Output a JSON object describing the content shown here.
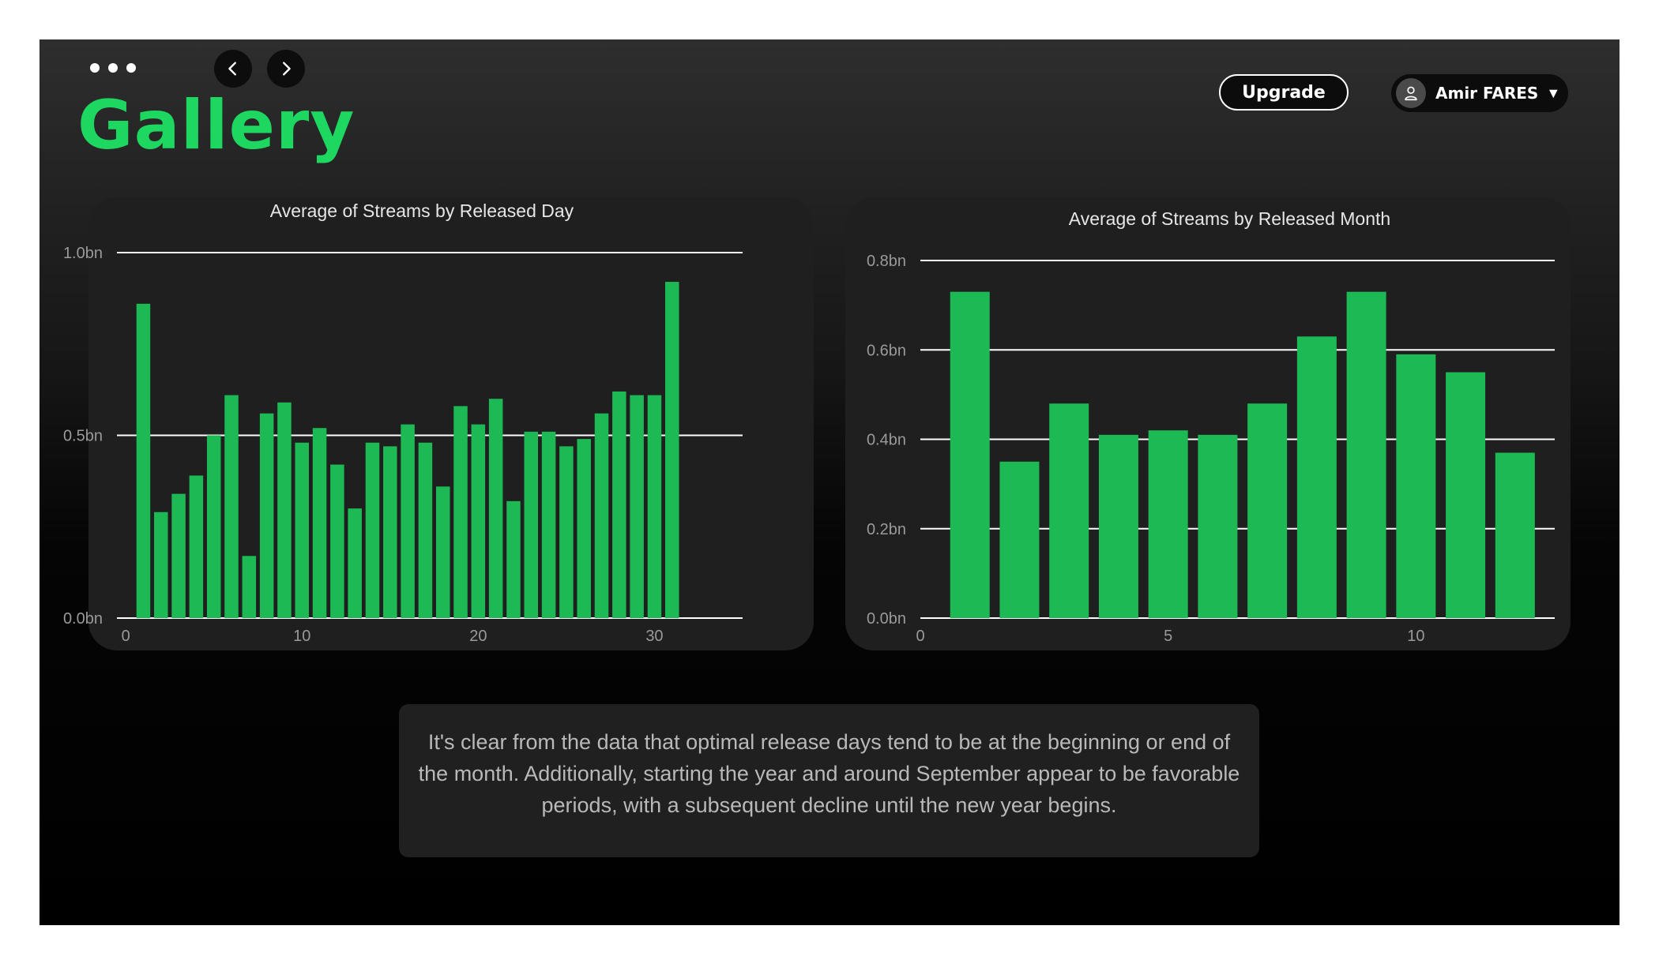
{
  "header": {
    "title": "Gallery",
    "upgrade_label": "Upgrade",
    "user_name": "Amir FARES",
    "icons": [
      "more-dots-icon",
      "chevron-left-icon",
      "chevron-right-icon",
      "user-icon",
      "caret-down-icon"
    ]
  },
  "colors": {
    "accent": "#1ed760",
    "bar": "#1db954",
    "card": "#1f1f1f",
    "text_muted": "#b9b9b9"
  },
  "chart_data": [
    {
      "type": "bar",
      "title": "Average of Streams by Released Day",
      "xlabel": "",
      "ylabel": "",
      "x": [
        1,
        2,
        3,
        4,
        5,
        6,
        7,
        8,
        9,
        10,
        11,
        12,
        13,
        14,
        15,
        16,
        17,
        18,
        19,
        20,
        21,
        22,
        23,
        24,
        25,
        26,
        27,
        28,
        29,
        30,
        31
      ],
      "values": [
        0.86,
        0.29,
        0.34,
        0.39,
        0.5,
        0.61,
        0.17,
        0.56,
        0.59,
        0.48,
        0.52,
        0.42,
        0.3,
        0.48,
        0.47,
        0.53,
        0.48,
        0.36,
        0.58,
        0.53,
        0.6,
        0.32,
        0.51,
        0.51,
        0.47,
        0.49,
        0.56,
        0.62,
        0.61,
        0.61,
        0.92
      ],
      "xlim": [
        -0.5,
        35
      ],
      "ylim": [
        0,
        1.0
      ],
      "yticks": [
        0,
        0.5,
        1.0
      ],
      "ytick_labels": [
        "0.0bn",
        "0.5bn",
        "1.0bn"
      ],
      "xticks": [
        0,
        10,
        20,
        30
      ],
      "xtick_labels": [
        "0",
        "10",
        "20",
        "30"
      ],
      "grid": true
    },
    {
      "type": "bar",
      "title": "Average of Streams by Released Month",
      "xlabel": "",
      "ylabel": "",
      "x": [
        1,
        2,
        3,
        4,
        5,
        6,
        7,
        8,
        9,
        10,
        11,
        12
      ],
      "values": [
        0.73,
        0.35,
        0.48,
        0.41,
        0.42,
        0.41,
        0.48,
        0.63,
        0.73,
        0.59,
        0.55,
        0.37
      ],
      "xlim": [
        0,
        12.8
      ],
      "ylim": [
        0,
        0.8
      ],
      "yticks": [
        0,
        0.2,
        0.4,
        0.6,
        0.8
      ],
      "ytick_labels": [
        "0.0bn",
        "0.2bn",
        "0.4bn",
        "0.6bn",
        "0.8bn"
      ],
      "xticks": [
        0,
        5,
        10
      ],
      "xtick_labels": [
        "0",
        "5",
        "10"
      ],
      "grid": true
    }
  ],
  "note": {
    "text": "It's clear from the data that optimal release days tend to be at the beginning or end of the month. Additionally, starting the year and around September appear to be favorable periods, with a subsequent decline until the new year begins."
  }
}
